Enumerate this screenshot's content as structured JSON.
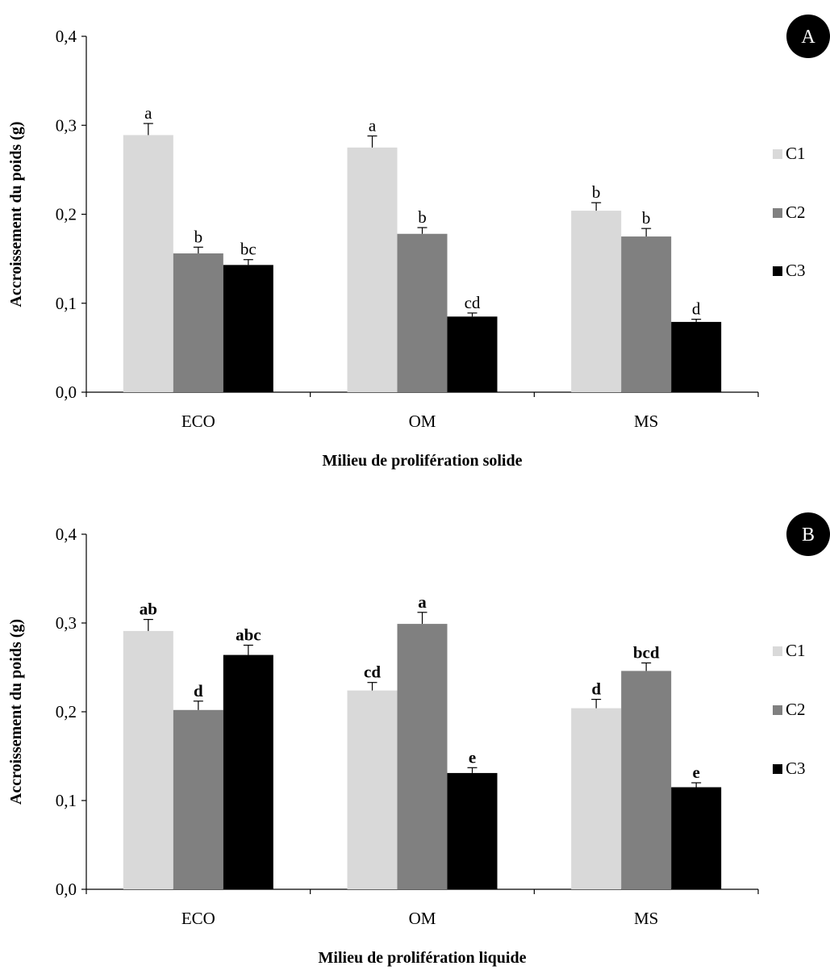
{
  "chart_data": [
    {
      "type": "bar",
      "panel_label": "A",
      "categories": [
        "ECO",
        "OM",
        "MS"
      ],
      "series": [
        {
          "name": "C1",
          "color": "#d9d9d9",
          "values": [
            0.289,
            0.275,
            0.204
          ],
          "errors": [
            0.013,
            0.013,
            0.009
          ],
          "labels": [
            "a",
            "a",
            "b"
          ]
        },
        {
          "name": "C2",
          "color": "#808080",
          "values": [
            0.156,
            0.178,
            0.175
          ],
          "errors": [
            0.007,
            0.007,
            0.009
          ],
          "labels": [
            "b",
            "b",
            "b"
          ]
        },
        {
          "name": "C3",
          "color": "#000000",
          "values": [
            0.143,
            0.085,
            0.079
          ],
          "errors": [
            0.006,
            0.004,
            0.003
          ],
          "labels": [
            "bc",
            "cd",
            "d"
          ]
        }
      ],
      "xlabel": "Milieu de prolifération solide",
      "ylabel": "Accroissement du poids (g)",
      "ylim": [
        0,
        0.4
      ],
      "yticks": [
        "0,0",
        "0,1",
        "0,2",
        "0,3",
        "0,4"
      ],
      "bold_significance_labels": false,
      "legend_position": "right",
      "grid": false
    },
    {
      "type": "bar",
      "panel_label": "B",
      "categories": [
        "ECO",
        "OM",
        "MS"
      ],
      "series": [
        {
          "name": "C1",
          "color": "#d9d9d9",
          "values": [
            0.291,
            0.224,
            0.204
          ],
          "errors": [
            0.013,
            0.009,
            0.01
          ],
          "labels": [
            "ab",
            "cd",
            "d"
          ]
        },
        {
          "name": "C2",
          "color": "#808080",
          "values": [
            0.202,
            0.299,
            0.246
          ],
          "errors": [
            0.01,
            0.013,
            0.009
          ],
          "labels": [
            "d",
            "a",
            "bcd"
          ]
        },
        {
          "name": "C3",
          "color": "#000000",
          "values": [
            0.264,
            0.131,
            0.115
          ],
          "errors": [
            0.011,
            0.006,
            0.005
          ],
          "labels": [
            "abc",
            "e",
            "e"
          ]
        }
      ],
      "xlabel": "Milieu de prolifération liquide",
      "ylabel": "Accroissement du poids (g)",
      "ylim": [
        0,
        0.4
      ],
      "yticks": [
        "0,0",
        "0,1",
        "0,2",
        "0,3",
        "0,4"
      ],
      "bold_significance_labels": true,
      "legend_position": "right",
      "grid": false
    }
  ]
}
